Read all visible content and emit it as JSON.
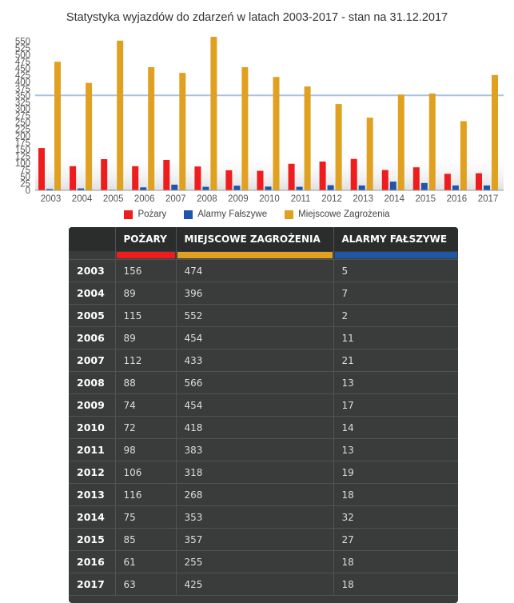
{
  "chart_data": {
    "type": "bar",
    "title": "Statystyka wyjazdów do zdarzeń w latach 2003-2017 - stan na 31.12.2017",
    "categories": [
      "2003",
      "2004",
      "2005",
      "2006",
      "2007",
      "2008",
      "2009",
      "2010",
      "2011",
      "2012",
      "2013",
      "2014",
      "2015",
      "2016",
      "2017"
    ],
    "series": [
      {
        "name": "Pożary",
        "color": "#ee1c1c",
        "values": [
          156,
          89,
          115,
          89,
          112,
          88,
          74,
          72,
          98,
          106,
          116,
          75,
          85,
          61,
          63
        ]
      },
      {
        "name": "Alarmy Fałszywe",
        "color": "#1f56a8",
        "values": [
          5,
          7,
          2,
          11,
          21,
          13,
          17,
          14,
          13,
          19,
          18,
          32,
          27,
          18,
          18
        ]
      },
      {
        "name": "Miejscowe Zagrożenia",
        "color": "#e0a020",
        "values": [
          474,
          396,
          552,
          454,
          433,
          566,
          454,
          418,
          383,
          318,
          268,
          353,
          357,
          255,
          425
        ]
      }
    ],
    "y_ticks": [
      0,
      25,
      50,
      75,
      100,
      125,
      150,
      175,
      200,
      225,
      250,
      275,
      300,
      325,
      350,
      375,
      400,
      425,
      450,
      475,
      500,
      525,
      550
    ],
    "ylim": [
      0,
      560
    ],
    "reference_line": 350,
    "grid": false,
    "legend_position": "bottom"
  },
  "table": {
    "headers": [
      "",
      "POŻARY",
      "MIEJSCOWE ZAGROŻENIA",
      "ALARMY FAŁSZYWE"
    ],
    "header_colors": [
      "",
      "#ee1c1c",
      "#e0a020",
      "#1f56a8"
    ],
    "rows": [
      [
        "2003",
        "156",
        "474",
        "5"
      ],
      [
        "2004",
        "89",
        "396",
        "7"
      ],
      [
        "2005",
        "115",
        "552",
        "2"
      ],
      [
        "2006",
        "89",
        "454",
        "11"
      ],
      [
        "2007",
        "112",
        "433",
        "21"
      ],
      [
        "2008",
        "88",
        "566",
        "13"
      ],
      [
        "2009",
        "74",
        "454",
        "17"
      ],
      [
        "2010",
        "72",
        "418",
        "14"
      ],
      [
        "2011",
        "98",
        "383",
        "13"
      ],
      [
        "2012",
        "106",
        "318",
        "19"
      ],
      [
        "2013",
        "116",
        "268",
        "18"
      ],
      [
        "2014",
        "75",
        "353",
        "32"
      ],
      [
        "2015",
        "85",
        "357",
        "27"
      ],
      [
        "2016",
        "61",
        "255",
        "18"
      ],
      [
        "2017",
        "63",
        "425",
        "18"
      ]
    ]
  }
}
